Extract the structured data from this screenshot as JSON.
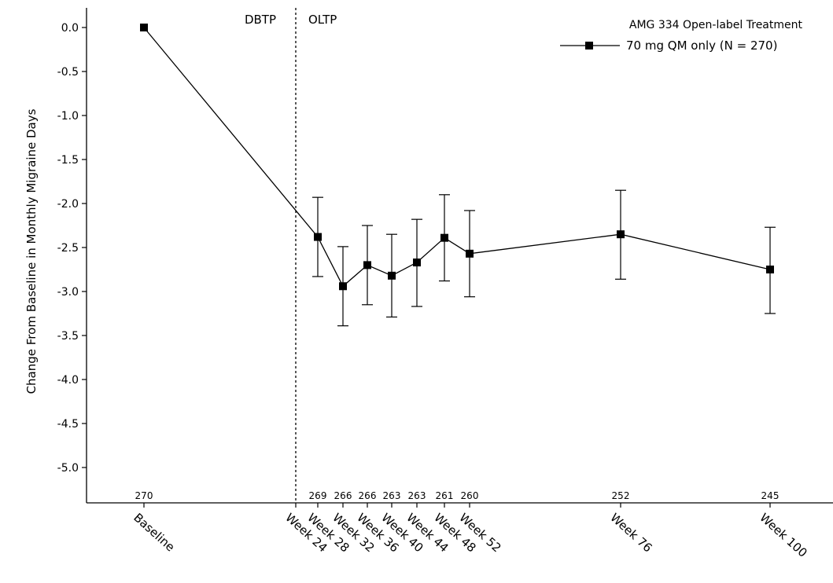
{
  "chart_data": {
    "type": "line",
    "ylabel": "Change From Baseline in Monthly Migraine Days",
    "ylim": [
      -5.0,
      0.0
    ],
    "yticks": [
      "0.0",
      "-0.5",
      "-1.0",
      "-1.5",
      "-2.0",
      "-2.5",
      "-3.0",
      "-3.5",
      "-4.0",
      "-4.5",
      "-5.0"
    ],
    "ytick_values": [
      0.0,
      -0.5,
      -1.0,
      -1.5,
      -2.0,
      -2.5,
      -3.0,
      -3.5,
      -4.0,
      -4.5,
      -5.0
    ],
    "x_week": [
      0,
      24,
      28,
      32,
      36,
      40,
      44,
      48,
      52,
      76,
      100
    ],
    "x_labels": [
      "Baseline",
      "Week 24",
      "Week 28",
      "Week 32",
      "Week 36",
      "Week 40",
      "Week 44",
      "Week 48",
      "Week 52",
      "Week 76",
      "Week 100"
    ],
    "period_labels": {
      "left": "DBTP",
      "right": "OLTP"
    },
    "period_boundary_week": 24,
    "legend": {
      "title": "AMG 334 Open-label Treatment",
      "placement": "top-right"
    },
    "series": [
      {
        "name": "70 mg QM only (N = 270)",
        "color": "#000000",
        "marker": "square",
        "points": [
          {
            "week": 0,
            "value": 0.0,
            "n": "270"
          },
          {
            "week": 28,
            "value": -2.38,
            "lower": -2.83,
            "upper": -1.93,
            "n": "269"
          },
          {
            "week": 32,
            "value": -2.94,
            "lower": -3.39,
            "upper": -2.49,
            "n": "266"
          },
          {
            "week": 36,
            "value": -2.7,
            "lower": -3.15,
            "upper": -2.25,
            "n": "266"
          },
          {
            "week": 40,
            "value": -2.82,
            "lower": -3.29,
            "upper": -2.35,
            "n": "263"
          },
          {
            "week": 44,
            "value": -2.67,
            "lower": -3.17,
            "upper": -2.18,
            "n": "263"
          },
          {
            "week": 48,
            "value": -2.39,
            "lower": -2.88,
            "upper": -1.9,
            "n": "261"
          },
          {
            "week": 52,
            "value": -2.57,
            "lower": -3.06,
            "upper": -2.08,
            "n": "260"
          },
          {
            "week": 76,
            "value": -2.35,
            "lower": -2.86,
            "upper": -1.85,
            "n": "252"
          },
          {
            "week": 100,
            "value": -2.75,
            "lower": -3.25,
            "upper": -2.27,
            "n": "245"
          }
        ]
      }
    ],
    "grid": false
  }
}
